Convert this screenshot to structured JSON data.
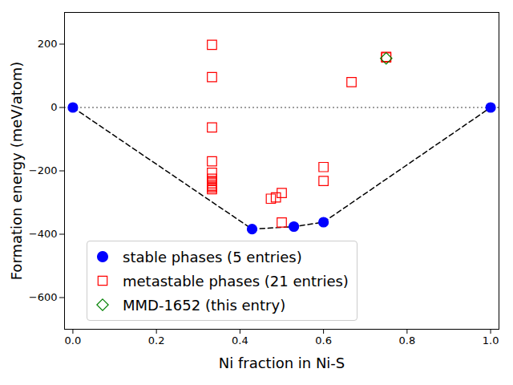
{
  "chart_data": {
    "type": "scatter",
    "x_label": "Ni fraction in Ni-S",
    "y_label": "Formation energy (meV/atom)",
    "xlim": [
      -0.02,
      1.02
    ],
    "ylim": [
      -700,
      300
    ],
    "xticks": [
      {
        "value": 0,
        "label": "0.0"
      },
      {
        "value": 0.2,
        "label": "0.2"
      },
      {
        "value": 0.4,
        "label": "0.4"
      },
      {
        "value": 0.6,
        "label": "0.6"
      },
      {
        "value": 0.8,
        "label": "0.8"
      },
      {
        "value": 1,
        "label": "1.0"
      }
    ],
    "yticks": [
      -600,
      -400,
      -200,
      0,
      200
    ],
    "grid": false,
    "legend": "lower left",
    "reference_line": {
      "y": 0,
      "line_style": "dotted",
      "color": "#808080"
    },
    "series": [
      {
        "name": "stable phases (5 entries)",
        "color": "#0000ff",
        "marker": "circle",
        "line_style": "dashed",
        "x": [
          0,
          0.429,
          0.529,
          0.6,
          1
        ],
        "values": [
          0,
          -384,
          -376,
          -362,
          0
        ]
      },
      {
        "name": "metastable phases (21 entries)",
        "color": "#ff0000",
        "marker": "square",
        "x": [
          0.333,
          0.333,
          0.333,
          0.333,
          0.333,
          0.333,
          0.333,
          0.333,
          0.333,
          0.333,
          0.333,
          0.333,
          0.474,
          0.486,
          0.5,
          0.5,
          0.6,
          0.6,
          0.667,
          0.75,
          0.75
        ],
        "values": [
          198,
          96,
          -63,
          -170,
          -206,
          -225,
          -232,
          -238,
          -243,
          -248,
          -252,
          -258,
          -288,
          -284,
          -270,
          -363,
          -188,
          -232,
          80,
          160,
          158
        ]
      },
      {
        "name": "MMD-1652 (this entry)",
        "color": "#008000",
        "marker": "diamond",
        "x": [
          0.75
        ],
        "values": [
          155
        ]
      }
    ]
  }
}
